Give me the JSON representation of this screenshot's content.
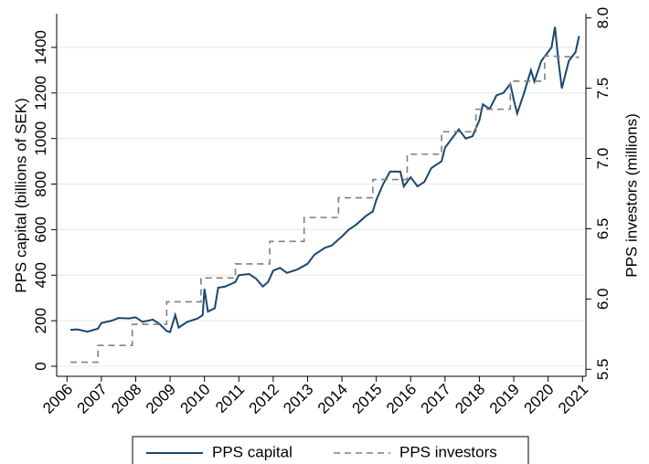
{
  "chart_data": {
    "type": "line",
    "y_label": "PPS capital (billions of SEK)",
    "y2_label": "PPS investors (millions)",
    "xlim": [
      2005.7,
      2021.1
    ],
    "xticks": [
      2006,
      2007,
      2008,
      2009,
      2010,
      2011,
      2012,
      2013,
      2014,
      2015,
      2016,
      2017,
      2018,
      2019,
      2020,
      2021
    ],
    "ylim": [
      -44,
      1548
    ],
    "yticks": [
      0,
      200,
      400,
      600,
      800,
      1000,
      1200,
      1400
    ],
    "y2lim": [
      5.45,
      8.03
    ],
    "y2ticks": [
      5.5,
      {
        "value": 6,
        "label": "6.0"
      },
      6.5,
      {
        "value": 7,
        "label": "7.0"
      },
      7.5,
      {
        "value": 8,
        "label": "8.0"
      }
    ],
    "grid": true,
    "legend": "bottom",
    "series": [
      {
        "name": "PPS capital",
        "color": "#1a476f",
        "dash": false,
        "x": [
          2006.1,
          2006.3,
          2006.6,
          2006.9,
          2007.0,
          2007.3,
          2007.5,
          2007.8,
          2008.0,
          2008.2,
          2008.5,
          2008.7,
          2008.9,
          2009.0,
          2009.15,
          2009.25,
          2009.5,
          2009.8,
          2009.95,
          2010.0,
          2010.1,
          2010.3,
          2010.4,
          2010.6,
          2010.9,
          2011.0,
          2011.3,
          2011.5,
          2011.7,
          2011.85,
          2012.0,
          2012.2,
          2012.4,
          2012.7,
          2013.0,
          2013.2,
          2013.5,
          2013.7,
          2014.0,
          2014.2,
          2014.4,
          2014.7,
          2014.9,
          2015.0,
          2015.2,
          2015.4,
          2015.7,
          2015.8,
          2016.0,
          2016.2,
          2016.4,
          2016.6,
          2016.9,
          2017.0,
          2017.2,
          2017.4,
          2017.6,
          2017.8,
          2018.0,
          2018.1,
          2018.3,
          2018.5,
          2018.7,
          2018.9,
          2019.0,
          2019.1,
          2019.3,
          2019.5,
          2019.6,
          2019.8,
          2019.9,
          2020.1,
          2020.2,
          2020.3,
          2020.4,
          2020.6,
          2020.8,
          2020.9
        ],
        "values": [
          160,
          162,
          152,
          165,
          190,
          200,
          212,
          210,
          215,
          195,
          205,
          185,
          155,
          150,
          225,
          170,
          195,
          210,
          225,
          340,
          240,
          255,
          345,
          350,
          370,
          400,
          405,
          385,
          350,
          370,
          420,
          432,
          410,
          425,
          450,
          490,
          520,
          530,
          570,
          600,
          620,
          660,
          680,
          730,
          800,
          855,
          855,
          790,
          830,
          790,
          810,
          870,
          900,
          960,
          1000,
          1040,
          1000,
          1010,
          1080,
          1150,
          1130,
          1190,
          1200,
          1240,
          1170,
          1110,
          1200,
          1300,
          1250,
          1340,
          1360,
          1400,
          1490,
          1340,
          1220,
          1340,
          1380,
          1450
        ]
      },
      {
        "name": "PPS investors",
        "color": "#7f7f7f",
        "dash": true,
        "axis": "y2",
        "x": [
          2006.1,
          2006.9,
          2006.9,
          2007.9,
          2007.9,
          2008.9,
          2008.9,
          2009.9,
          2009.9,
          2010.9,
          2010.9,
          2011.9,
          2011.9,
          2012.9,
          2012.9,
          2013.9,
          2013.9,
          2014.9,
          2014.9,
          2015.9,
          2015.9,
          2016.9,
          2016.9,
          2017.9,
          2017.9,
          2018.9,
          2018.9,
          2019.9,
          2019.9,
          2020.9
        ],
        "values": [
          5.55,
          5.55,
          5.67,
          5.67,
          5.82,
          5.82,
          5.98,
          5.98,
          6.15,
          6.15,
          6.25,
          6.25,
          6.41,
          6.41,
          6.58,
          6.58,
          6.72,
          6.72,
          6.85,
          6.85,
          7.03,
          7.03,
          7.19,
          7.19,
          7.35,
          7.35,
          7.55,
          7.55,
          7.73,
          7.72
        ]
      }
    ]
  }
}
